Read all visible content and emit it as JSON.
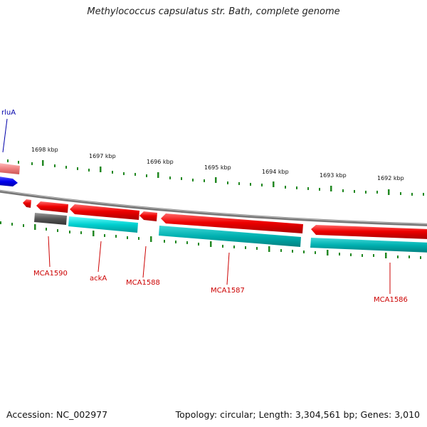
{
  "title": "Methylococcus capsulatus str. Bath, complete genome",
  "footer": {
    "accession": "Accession: NC_002977",
    "topology": "Topology: circular; Length: 3,304,561 bp; Genes: 3,010"
  },
  "colors": {
    "forward_gene": "#ee0000",
    "reverse_gene": "#00cccc",
    "other_gene": "#555555",
    "backbone": "#888888",
    "ticks": "#228822",
    "labels": "#cc0000",
    "blue_feature": "#0000ee"
  },
  "scale_labels": [
    "1698 kbp",
    "1697 kbp",
    "1696 kbp",
    "1695 kbp",
    "1694 kbp",
    "1693 kbp",
    "1692 kbp"
  ],
  "gene_labels": [
    "MCA1590",
    "ackA",
    "MCA1588",
    "MCA1587",
    "MCA1586"
  ],
  "partial_label": "rluA"
}
